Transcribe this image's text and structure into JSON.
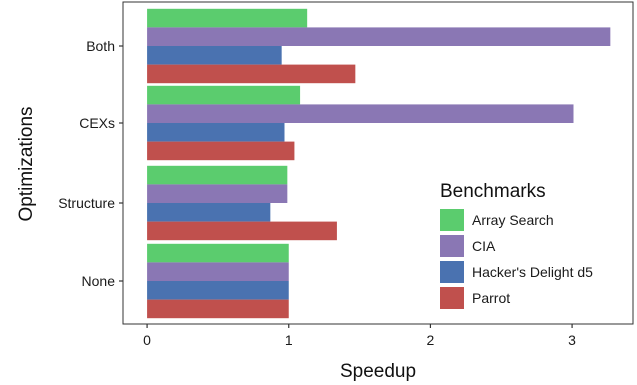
{
  "chart_data": {
    "type": "bar",
    "orientation": "horizontal",
    "categories": [
      "Both",
      "CEXs",
      "Structure",
      "None"
    ],
    "series": [
      {
        "name": "Array Search",
        "color": "#5bcc6e",
        "values": [
          1.13,
          1.08,
          0.99,
          1.0
        ]
      },
      {
        "name": "CIA",
        "color": "#8a77b4",
        "values": [
          3.27,
          3.01,
          0.99,
          1.0
        ]
      },
      {
        "name": "Hacker's Delight d5",
        "color": "#4a72b0",
        "values": [
          0.95,
          0.97,
          0.87,
          1.0
        ]
      },
      {
        "name": "Parrot",
        "color": "#c0504d",
        "values": [
          1.47,
          1.04,
          1.34,
          1.0
        ]
      }
    ],
    "xlabel": "Speedup",
    "ylabel": "Optimizations",
    "xlim": [
      -0.17,
      3.43
    ],
    "xticks": [
      "0",
      "1",
      "2",
      "3"
    ],
    "grid": false,
    "legend": {
      "title": "Benchmarks",
      "placement": "bottom-right (inside)"
    }
  }
}
